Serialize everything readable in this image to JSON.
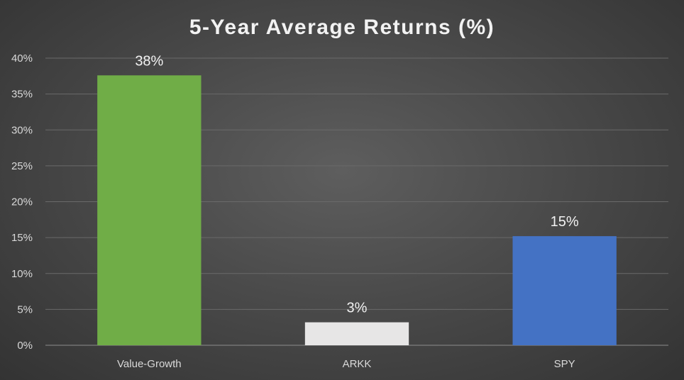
{
  "chart_data": {
    "type": "bar",
    "title": "5-Year Average Returns (%)",
    "xlabel": "",
    "ylabel": "",
    "categories": [
      "Value-Growth",
      "ARKK",
      "SPY"
    ],
    "values": [
      37.6,
      3.2,
      15.2
    ],
    "value_labels": [
      "38%",
      "3%",
      "15%"
    ],
    "bar_colors": [
      "#70ad47",
      "#e7e6e6",
      "#4472c4"
    ],
    "ylim": [
      0,
      40
    ],
    "yticks": [
      0,
      5,
      10,
      15,
      20,
      25,
      30,
      35,
      40
    ],
    "ytick_labels": [
      "0%",
      "5%",
      "10%",
      "15%",
      "20%",
      "25%",
      "30%",
      "35%",
      "40%"
    ],
    "grid": true,
    "legend": "none"
  }
}
